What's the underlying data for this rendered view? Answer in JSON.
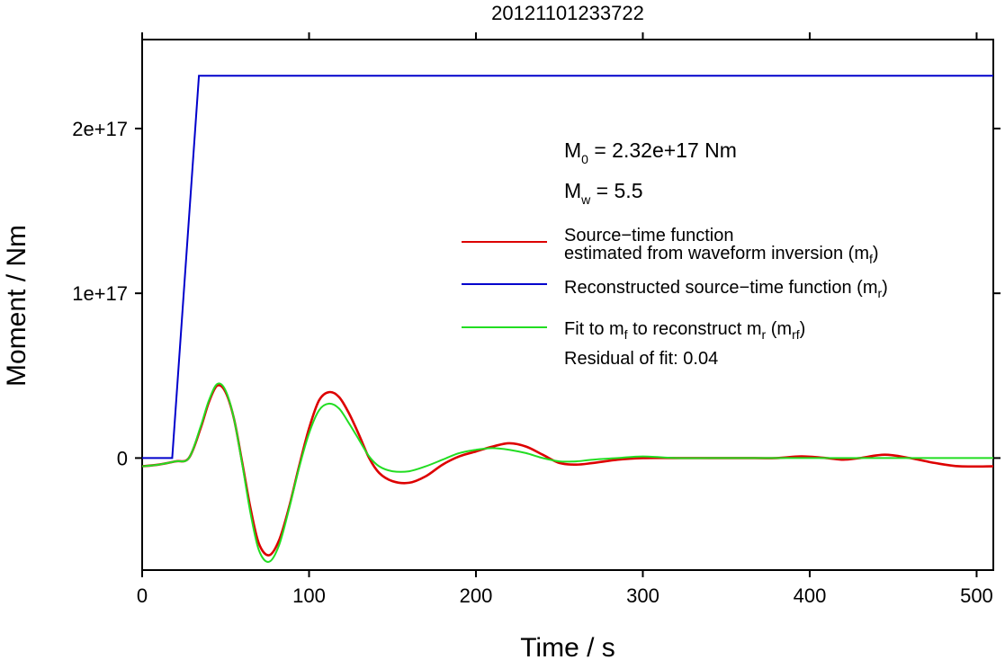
{
  "chart_data": {
    "type": "line",
    "title": "20121101233722",
    "xlabel": "Time / s",
    "ylabel": "Moment / Nm",
    "xlim": [
      0,
      510
    ],
    "ylim": [
      -6.8e+16,
      2.54e+17
    ],
    "x_ticks": [
      0,
      100,
      200,
      300,
      400,
      500
    ],
    "x_tick_labels": [
      "0",
      "100",
      "200",
      "300",
      "400",
      "500"
    ],
    "y_ticks": [
      0,
      1e+17,
      2e+17
    ],
    "y_tick_labels": [
      "0",
      "1e+17",
      "2e+17"
    ],
    "grid": false,
    "legend_position": "right",
    "annotations": {
      "m0_label": "M",
      "m0_sub": "0",
      "m0_value": " = 2.32e+17 Nm",
      "mw_label": "M",
      "mw_sub": "w",
      "mw_value": " = 5.5",
      "residual": "Residual of fit: 0.04"
    },
    "legend": [
      {
        "lines": [
          "Source−time function",
          "estimated from waveform inversion (m",
          "f",
          ")"
        ],
        "color": "#dd0000"
      },
      {
        "lines": [
          "Reconstructed source−time function (m",
          "r",
          ")"
        ],
        "color": "#0000cc"
      },
      {
        "lines": [
          "Fit to m",
          "f",
          " to reconstruct m",
          "r",
          " (m",
          "rf",
          ")"
        ],
        "color": "#22dd22"
      }
    ],
    "series": [
      {
        "color": "#0000cc",
        "x": [
          0,
          18,
          34,
          510
        ],
        "y": [
          0,
          0,
          2.32e+17,
          2.32e+17
        ]
      },
      {
        "color": "#dd0000",
        "x": [
          0,
          10,
          20,
          28,
          35,
          40,
          45,
          50,
          55,
          60,
          65,
          70,
          76,
          82,
          88,
          94,
          100,
          106,
          112,
          118,
          124,
          130,
          136,
          142,
          150,
          160,
          170,
          180,
          190,
          200,
          210,
          220,
          230,
          240,
          250,
          260,
          270,
          285,
          300,
          320,
          340,
          360,
          380,
          395,
          410,
          420,
          430,
          445,
          460,
          475,
          490,
          510
        ],
        "y": [
          -5000000000000000.0,
          -4000000000000000.0,
          -2000000000000000.0,
          0,
          1.8e+16,
          3.4e+16,
          4.4e+16,
          4e+16,
          2.4e+16,
          -3000000000000000.0,
          -3.1e+16,
          -5.2e+16,
          -5.9e+16,
          -5e+16,
          -3e+16,
          -5000000000000000.0,
          1.8e+16,
          3.5e+16,
          4e+16,
          3.7e+16,
          2.7e+16,
          1.4e+16,
          0,
          -9000000000000000.0,
          -1.4e+16,
          -1.5e+16,
          -1.1e+16,
          -4000000000000000.0,
          1000000000000000.0,
          4000000000000000.0,
          7000000000000000.0,
          9000000000000000.0,
          7000000000000000.0,
          2000000000000000.0,
          -3000000000000000.0,
          -4000000000000000.0,
          -3000000000000000.0,
          -1000000000000000.0,
          0,
          0,
          0,
          0,
          0,
          1000000000000000.0,
          0,
          -1000000000000000.0,
          0,
          2000000000000000.0,
          0,
          -3000000000000000.0,
          -5000000000000000.0,
          -5000000000000000.0
        ]
      },
      {
        "color": "#22dd22",
        "x": [
          0,
          10,
          20,
          28,
          35,
          40,
          45,
          50,
          55,
          60,
          65,
          70,
          76,
          82,
          88,
          94,
          100,
          106,
          112,
          118,
          124,
          130,
          136,
          142,
          150,
          160,
          170,
          180,
          190,
          200,
          210,
          220,
          230,
          240,
          250,
          260,
          270,
          285,
          300,
          320,
          340,
          360,
          380,
          400,
          420,
          440,
          460,
          480,
          510
        ],
        "y": [
          -5000000000000000.0,
          -4000000000000000.0,
          -2000000000000000.0,
          0,
          1.9e+16,
          3.5e+16,
          4.5e+16,
          4.1e+16,
          2.4e+16,
          -4000000000000000.0,
          -3.4e+16,
          -5.6e+16,
          -6.3e+16,
          -5.3e+16,
          -3.1e+16,
          -6000000000000000.0,
          1.5e+16,
          2.9e+16,
          3.3e+16,
          3e+16,
          2.1e+16,
          1.1e+16,
          1000000000000000.0,
          -5000000000000000.0,
          -8000000000000000.0,
          -8000000000000000.0,
          -5000000000000000.0,
          -1000000000000000.0,
          3000000000000000.0,
          5000000000000000.0,
          6000000000000000.0,
          5000000000000000.0,
          3000000000000000.0,
          0,
          -2000000000000000.0,
          -2000000000000000.0,
          -1000000000000000.0,
          0,
          1000000000000000.0,
          0,
          0,
          0,
          0,
          0,
          0,
          0,
          0,
          0,
          0
        ]
      }
    ]
  }
}
